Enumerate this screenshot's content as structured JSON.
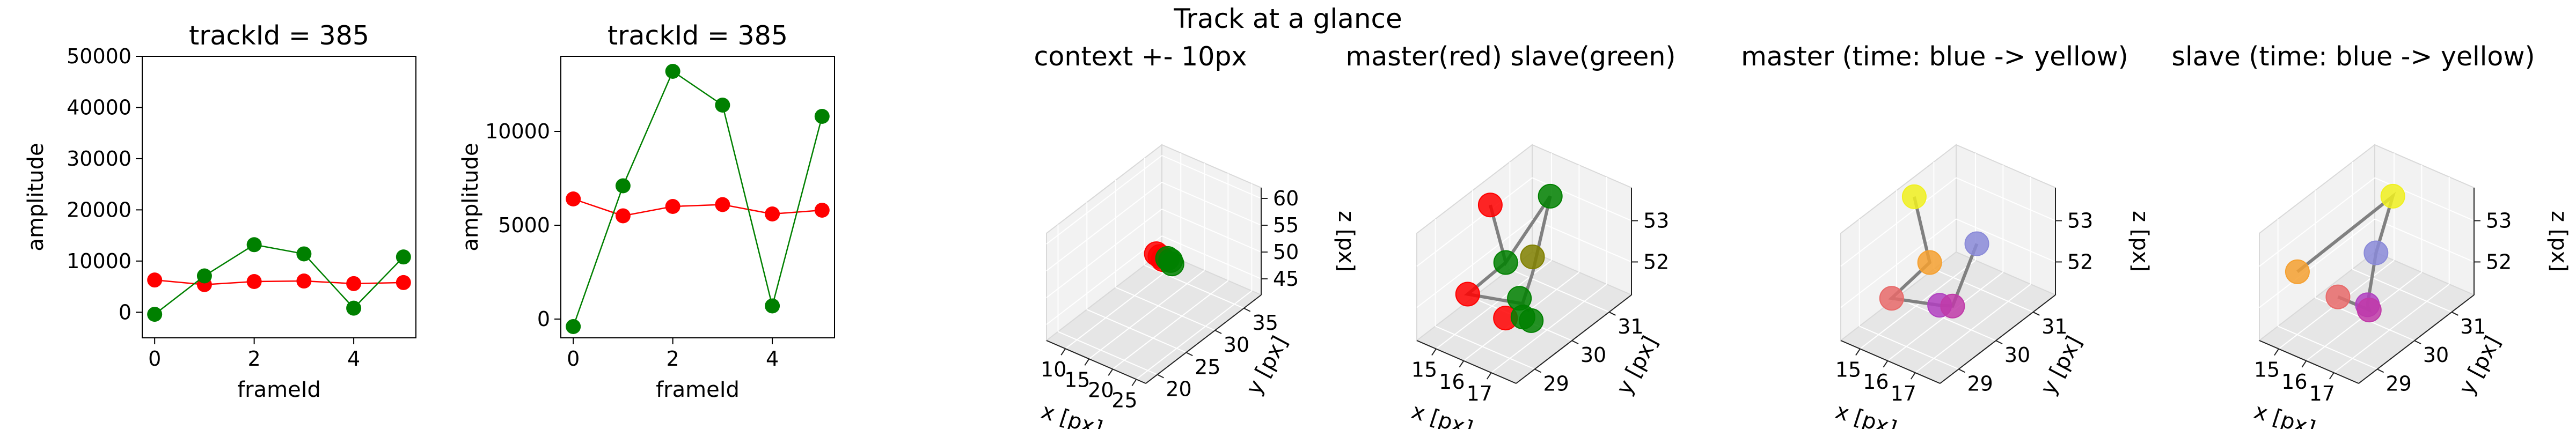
{
  "suptitle": "Track at a glance",
  "colors": {
    "master": "#ff0000",
    "slave": "#008000",
    "connector": "#808080"
  },
  "chart_data": [
    {
      "type": "line",
      "title": "trackId = 385",
      "xlabel": "frameId",
      "ylabel": "amplitude",
      "xlim": [
        -0.25,
        5.25
      ],
      "ylim": [
        -5000,
        50000
      ],
      "xticks": [
        0,
        2,
        4
      ],
      "yticks": [
        0,
        10000,
        20000,
        30000,
        40000,
        50000
      ],
      "x": [
        0,
        1,
        2,
        3,
        4,
        5
      ],
      "series": [
        {
          "color": "#ff0000",
          "values": [
            6300,
            5400,
            6000,
            6100,
            5600,
            5800
          ]
        },
        {
          "color": "#008000",
          "values": [
            -400,
            7100,
            13200,
            11400,
            800,
            10800
          ]
        }
      ]
    },
    {
      "type": "line",
      "title": "trackId = 385",
      "xlabel": "frameId",
      "ylabel": "amplitude",
      "xlim": [
        -0.25,
        5.25
      ],
      "ylim": [
        -1000,
        14000
      ],
      "xticks": [
        0,
        2,
        4
      ],
      "yticks": [
        0,
        5000,
        10000
      ],
      "x": [
        0,
        1,
        2,
        3,
        4,
        5
      ],
      "series": [
        {
          "color": "#ff0000",
          "values": [
            6400,
            5500,
            6000,
            6100,
            5600,
            5800
          ]
        },
        {
          "color": "#008000",
          "values": [
            -400,
            7100,
            13200,
            11400,
            700,
            10800
          ]
        }
      ]
    },
    {
      "type": "scatter",
      "projection": "3d",
      "title": "context +- 10px",
      "xlabel": "x [px]",
      "ylabel": "y [px]",
      "zlabel": "z [px]",
      "xlim": [
        6,
        27
      ],
      "ylim": [
        18,
        38
      ],
      "zlim": [
        42,
        62
      ],
      "xticks": [
        10,
        15,
        20,
        25
      ],
      "yticks": [
        20,
        25,
        30,
        35
      ],
      "zticks": [
        45,
        50,
        55,
        60
      ],
      "points": [
        {
          "x": 15.2,
          "y": 29.5,
          "z": 52.2,
          "color": "#ff0000"
        },
        {
          "x": 15.6,
          "y": 29.8,
          "z": 51.6,
          "color": "#ff0000"
        },
        {
          "x": 16.0,
          "y": 30.0,
          "z": 51.0,
          "color": "#ff0000"
        },
        {
          "x": 16.6,
          "y": 30.3,
          "z": 51.2,
          "color": "#008000"
        },
        {
          "x": 17.0,
          "y": 30.5,
          "z": 50.8,
          "color": "#008000"
        },
        {
          "x": 17.4,
          "y": 30.4,
          "z": 50.4,
          "color": "#008000"
        }
      ]
    },
    {
      "type": "scatter",
      "projection": "3d",
      "title": "master(red) slave(green)",
      "xlabel": "x [px]",
      "ylabel": "y [px]",
      "zlabel": "",
      "xlim": [
        14.3,
        17.9
      ],
      "ylim": [
        28.5,
        31.6
      ],
      "zlim": [
        51.2,
        53.8
      ],
      "xticks": [
        15,
        16,
        17
      ],
      "yticks": [
        29,
        30,
        31
      ],
      "zticks": [
        52,
        53
      ],
      "lines": [
        [
          {
            "x": 14.4,
            "y": 30.4,
            "z": 53.2
          },
          {
            "x": 15.5,
            "y": 30.0,
            "z": 52.4
          },
          {
            "x": 15.9,
            "y": 30.9,
            "z": 53.5
          },
          {
            "x": 16.2,
            "y": 30.2,
            "z": 52.2
          },
          {
            "x": 16.6,
            "y": 29.6,
            "z": 51.9
          }
        ],
        [
          {
            "x": 15.5,
            "y": 30.0,
            "z": 52.4
          },
          {
            "x": 15.2,
            "y": 29.2,
            "z": 52.1
          },
          {
            "x": 16.5,
            "y": 29.7,
            "z": 51.9
          },
          {
            "x": 16.9,
            "y": 29.6,
            "z": 51.9
          }
        ]
      ],
      "points": [
        {
          "x": 14.4,
          "y": 30.4,
          "z": 53.2,
          "color": "#ff0000"
        },
        {
          "x": 15.2,
          "y": 29.2,
          "z": 52.1,
          "color": "#ff0000"
        },
        {
          "x": 16.3,
          "y": 29.4,
          "z": 51.7,
          "color": "#ff0000"
        },
        {
          "x": 15.5,
          "y": 30.0,
          "z": 52.4,
          "color": "#008000"
        },
        {
          "x": 15.9,
          "y": 30.9,
          "z": 53.5,
          "color": "#008000"
        },
        {
          "x": 16.2,
          "y": 30.2,
          "z": 52.6,
          "color": "#808000"
        },
        {
          "x": 16.4,
          "y": 29.7,
          "z": 52.0,
          "color": "#008000"
        },
        {
          "x": 16.8,
          "y": 29.5,
          "z": 51.8,
          "color": "#008000"
        },
        {
          "x": 17.1,
          "y": 29.5,
          "z": 51.8,
          "color": "#008000"
        }
      ]
    },
    {
      "type": "scatter",
      "projection": "3d",
      "title": "master (time: blue -> yellow)",
      "xlabel": "x [px]",
      "ylabel": "y [px]",
      "zlabel": "z [px]",
      "xlim": [
        14.3,
        17.9
      ],
      "ylim": [
        28.5,
        31.6
      ],
      "zlim": [
        51.2,
        53.8
      ],
      "xticks": [
        15,
        16,
        17
      ],
      "yticks": [
        29,
        30,
        31
      ],
      "zticks": [
        52,
        53
      ],
      "lines": [
        [
          {
            "x": 14.4,
            "y": 30.4,
            "z": 53.4
          },
          {
            "x": 15.5,
            "y": 30.0,
            "z": 52.4
          },
          {
            "x": 15.2,
            "y": 29.2,
            "z": 52.0
          },
          {
            "x": 16.4,
            "y": 29.6,
            "z": 51.9
          },
          {
            "x": 16.6,
            "y": 29.8,
            "z": 51.8
          },
          {
            "x": 16.4,
            "y": 30.6,
            "z": 52.7
          }
        ]
      ],
      "points": [
        {
          "x": 14.4,
          "y": 30.4,
          "z": 53.4,
          "color": "#f0f020"
        },
        {
          "x": 15.5,
          "y": 30.0,
          "z": 52.4,
          "color": "#f5a030"
        },
        {
          "x": 15.2,
          "y": 29.2,
          "z": 52.0,
          "color": "#e86a6a"
        },
        {
          "x": 16.4,
          "y": 29.6,
          "z": 51.9,
          "color": "#b040c0"
        },
        {
          "x": 16.6,
          "y": 29.8,
          "z": 51.8,
          "color": "#c03aa8"
        },
        {
          "x": 16.4,
          "y": 30.6,
          "z": 52.7,
          "color": "#8a8ad8"
        }
      ]
    },
    {
      "type": "scatter",
      "projection": "3d",
      "title": "slave (time: blue -> yellow)",
      "xlabel": "x [px]",
      "ylabel": "y [px]",
      "zlabel": "z [px]",
      "xlim": [
        14.3,
        17.9
      ],
      "ylim": [
        28.5,
        31.6
      ],
      "zlim": [
        51.2,
        53.8
      ],
      "xticks": [
        15,
        16,
        17
      ],
      "yticks": [
        29,
        30,
        31
      ],
      "zticks": [
        52,
        53
      ],
      "lines": [
        [
          {
            "x": 14.6,
            "y": 29.3,
            "z": 52.4
          },
          {
            "x": 15.9,
            "y": 30.9,
            "z": 53.5
          },
          {
            "x": 16.1,
            "y": 30.3,
            "z": 52.6
          },
          {
            "x": 16.6,
            "y": 29.7,
            "z": 51.9
          },
          {
            "x": 16.8,
            "y": 29.6,
            "z": 51.9
          },
          {
            "x": 15.8,
            "y": 29.5,
            "z": 52.0
          }
        ]
      ],
      "points": [
        {
          "x": 14.6,
          "y": 29.3,
          "z": 52.4,
          "color": "#f5a030"
        },
        {
          "x": 15.9,
          "y": 30.9,
          "z": 53.5,
          "color": "#f0f020"
        },
        {
          "x": 16.1,
          "y": 30.3,
          "z": 52.6,
          "color": "#8a8ad8"
        },
        {
          "x": 15.8,
          "y": 29.5,
          "z": 52.0,
          "color": "#e86a6a"
        },
        {
          "x": 16.6,
          "y": 29.7,
          "z": 51.9,
          "color": "#b040c0"
        },
        {
          "x": 16.8,
          "y": 29.6,
          "z": 51.9,
          "color": "#c03aa8"
        }
      ]
    }
  ]
}
